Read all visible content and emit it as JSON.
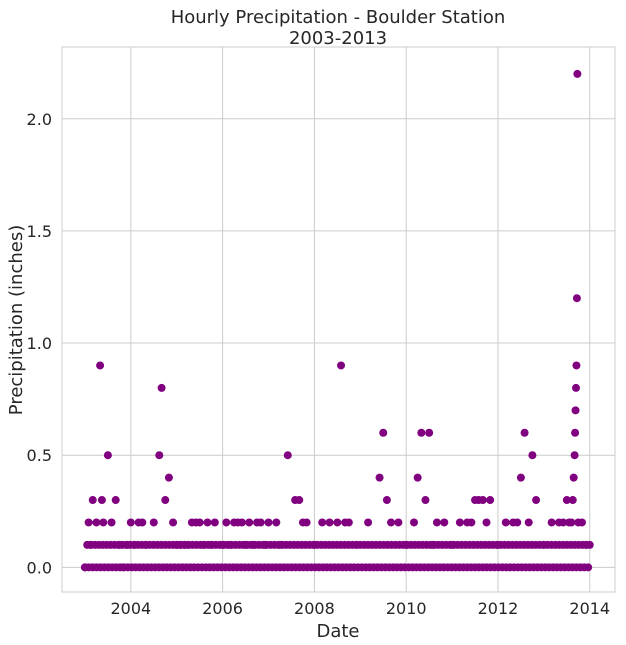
{
  "chart_data": {
    "type": "scatter",
    "title": "Hourly Precipitation - Boulder Station",
    "subtitle": "2003-2013",
    "xlabel": "Date",
    "ylabel": "Precipitation (inches)",
    "xlim": [
      2002.5,
      2014.55
    ],
    "ylim": [
      -0.11,
      2.32
    ],
    "xticks": [
      2004,
      2006,
      2008,
      2010,
      2012,
      2014
    ],
    "yticks": [
      0.0,
      0.5,
      1.0,
      1.5,
      2.0
    ],
    "ytick_labels": [
      "0.0",
      "0.5",
      "1.0",
      "1.5",
      "2.0"
    ],
    "grid": true,
    "marker_color": "#800080",
    "series": [
      {
        "x": [
          2003.0,
          2003.08,
          2003.12,
          2003.17,
          2003.25,
          2003.33,
          2003.37,
          2003.4,
          2003.5,
          2003.58,
          2003.67,
          2003.75,
          2003.83,
          2003.92,
          2004.0,
          2004.08,
          2004.17,
          2004.25,
          2004.33,
          2004.5,
          2004.62,
          2004.67,
          2004.75,
          2004.83,
          2004.92,
          2005.0,
          2005.08,
          2005.17,
          2005.25,
          2005.33,
          2005.42,
          2005.5,
          2005.58,
          2005.67,
          2005.75,
          2005.83,
          2006.0,
          2006.08,
          2006.17,
          2006.25,
          2006.33,
          2006.42,
          2006.5,
          2006.58,
          2006.67,
          2006.75,
          2006.83,
          2006.92,
          2007.0,
          2007.17,
          2007.25,
          2007.42,
          2007.58,
          2007.67,
          2007.75,
          2007.83,
          2008.0,
          2008.17,
          2008.33,
          2008.5,
          2008.58,
          2008.67,
          2008.75,
          2008.92,
          2009.17,
          2009.42,
          2009.5,
          2009.58,
          2009.67,
          2009.83,
          2010.0,
          2010.17,
          2010.25,
          2010.33,
          2010.42,
          2010.5,
          2010.58,
          2010.67,
          2010.83,
          2011.0,
          2011.17,
          2011.33,
          2011.42,
          2011.5,
          2011.58,
          2011.67,
          2011.75,
          2011.83,
          2012.0,
          2012.17,
          2012.33,
          2012.42,
          2012.5,
          2012.58,
          2012.67,
          2012.75,
          2012.83,
          2013.0,
          2013.17,
          2013.33,
          2013.42,
          2013.5,
          2013.55,
          2013.6,
          2013.63,
          2013.65,
          2013.67,
          2013.68,
          2013.69,
          2013.7,
          2013.71,
          2013.72,
          2013.73,
          2013.75,
          2013.83,
          2013.92,
          2014.0
        ],
        "y": [
          0.0,
          0.2,
          0.1,
          0.3,
          0.2,
          0.9,
          0.3,
          0.2,
          0.5,
          0.2,
          0.3,
          0.1,
          0.0,
          0.1,
          0.2,
          0.1,
          0.2,
          0.2,
          0.1,
          0.2,
          0.5,
          0.8,
          0.3,
          0.4,
          0.2,
          0.1,
          0.1,
          0.1,
          0.1,
          0.2,
          0.2,
          0.2,
          0.1,
          0.2,
          0.1,
          0.2,
          0.1,
          0.2,
          0.1,
          0.2,
          0.2,
          0.2,
          0.1,
          0.2,
          0.1,
          0.2,
          0.2,
          0.1,
          0.2,
          0.2,
          0.1,
          0.5,
          0.3,
          0.3,
          0.2,
          0.2,
          0.1,
          0.2,
          0.2,
          0.2,
          0.9,
          0.2,
          0.2,
          0.1,
          0.2,
          0.4,
          0.6,
          0.3,
          0.2,
          0.2,
          0.1,
          0.2,
          0.4,
          0.6,
          0.3,
          0.6,
          0.1,
          0.2,
          0.2,
          0.1,
          0.2,
          0.2,
          0.2,
          0.3,
          0.3,
          0.3,
          0.2,
          0.3,
          0.1,
          0.2,
          0.2,
          0.2,
          0.4,
          0.6,
          0.2,
          0.5,
          0.3,
          0.1,
          0.2,
          0.2,
          0.2,
          0.3,
          0.2,
          0.2,
          0.3,
          0.4,
          0.5,
          0.6,
          0.7,
          0.8,
          0.9,
          1.2,
          2.2,
          0.2,
          0.2,
          0.1,
          0.1
        ]
      }
    ],
    "baseline_rows": [
      {
        "y": 0.0,
        "x_start": 2003.0,
        "x_end": 2014.0,
        "step": 0.085
      },
      {
        "y": 0.1,
        "x_start": 2003.05,
        "x_end": 2014.0,
        "step": 0.085
      }
    ]
  }
}
